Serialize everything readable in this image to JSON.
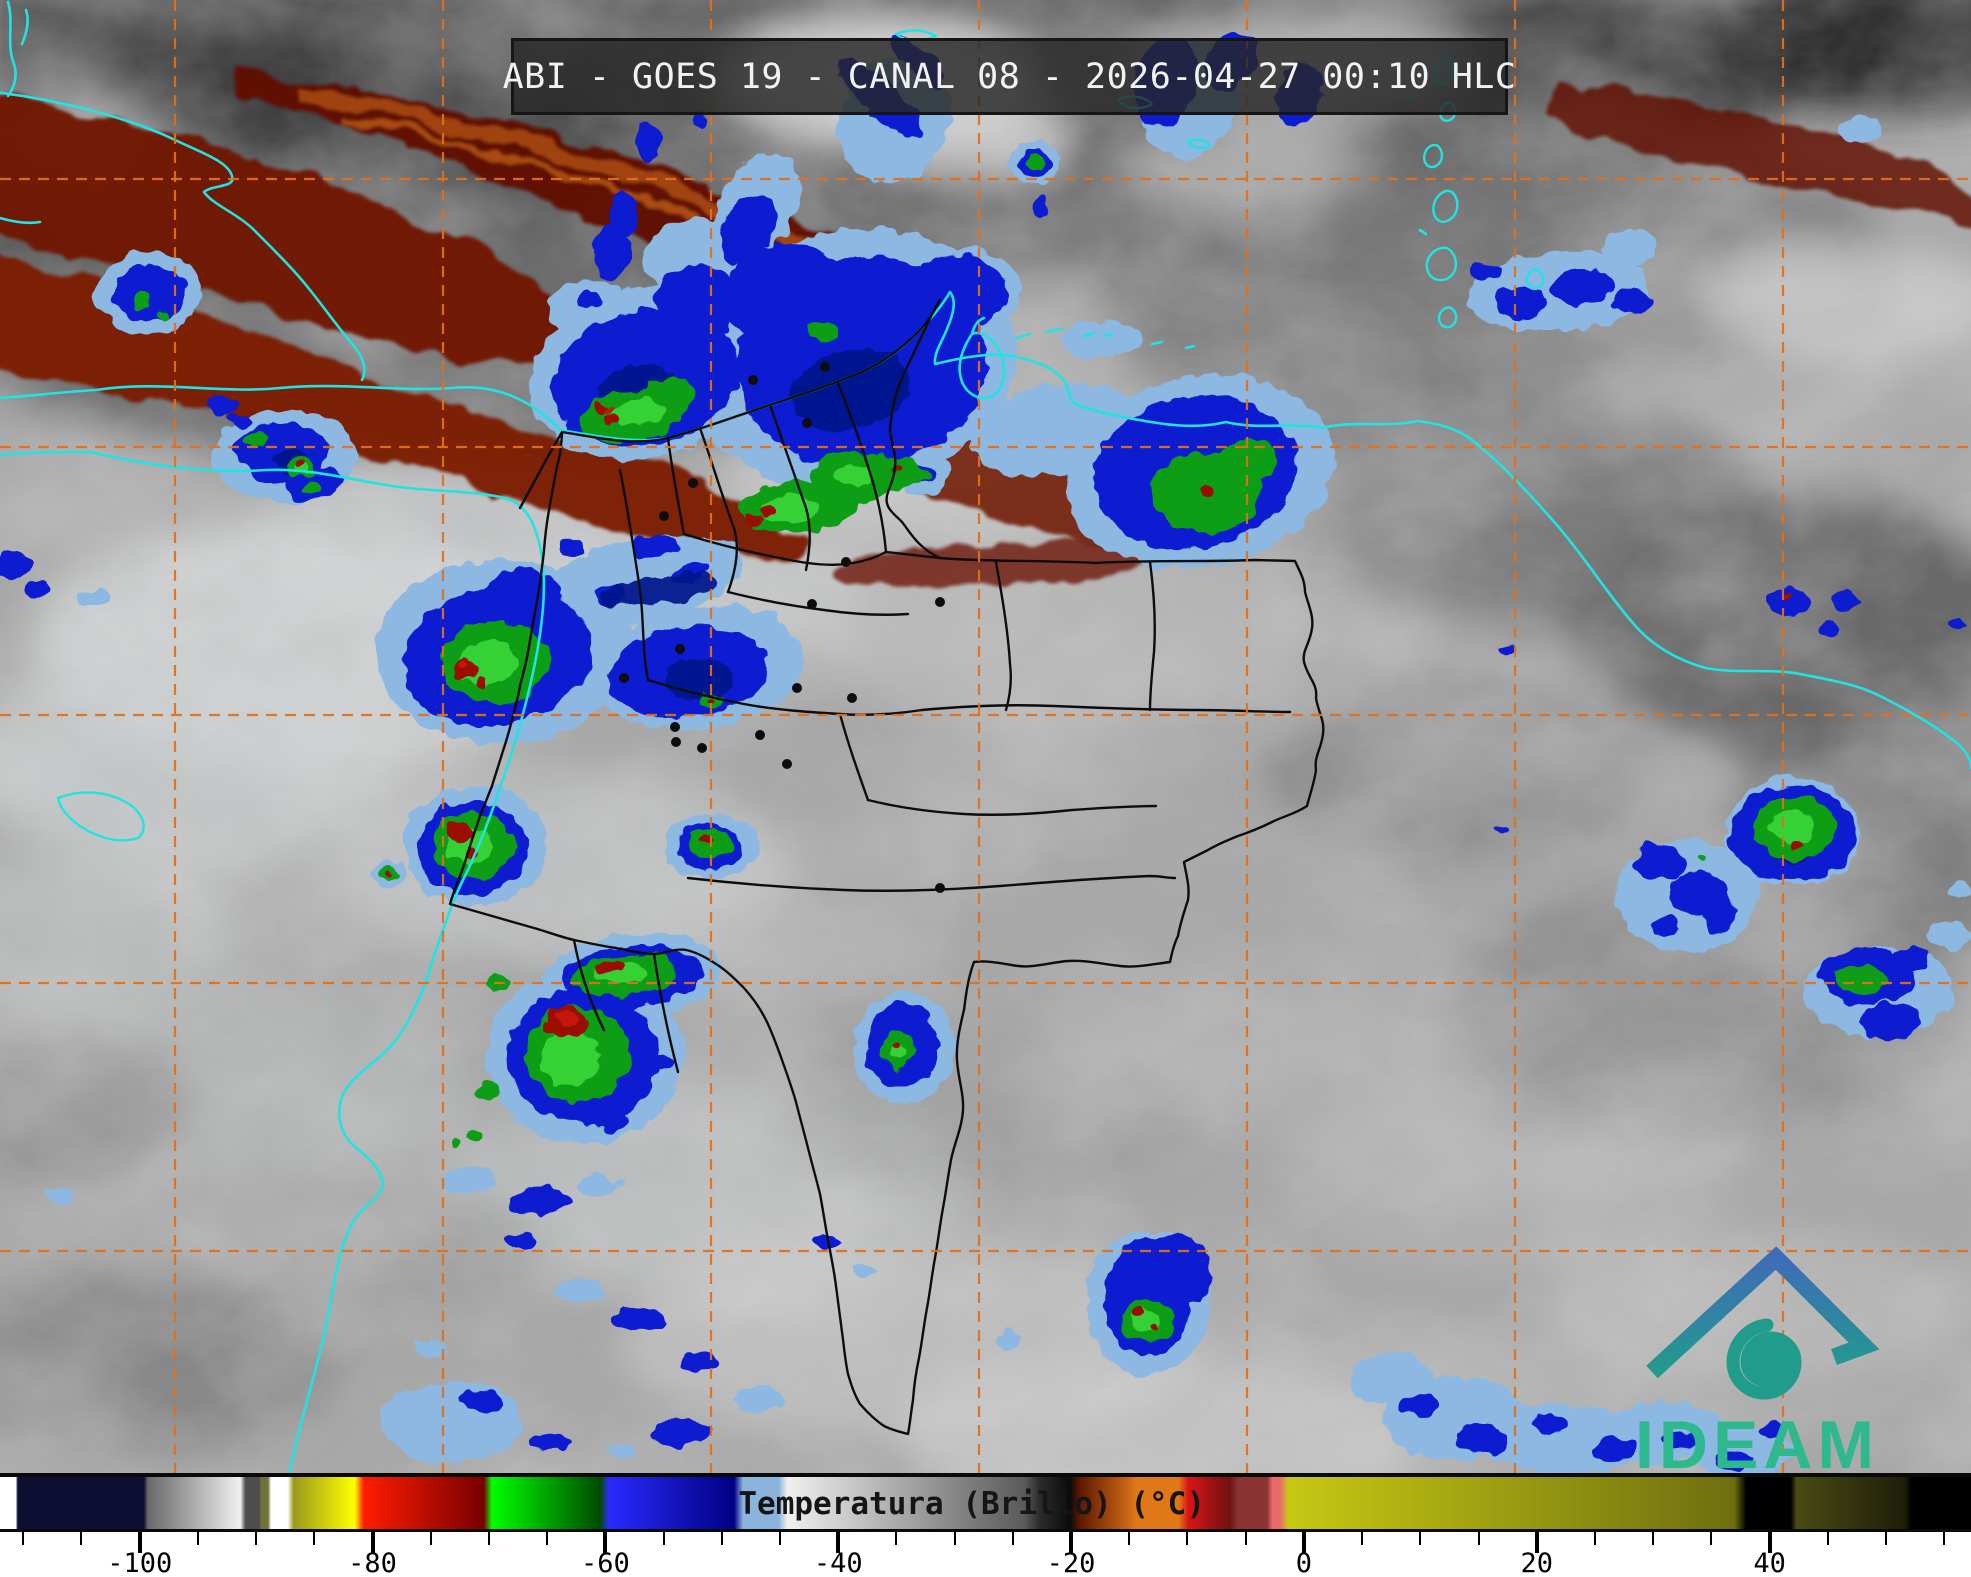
{
  "header": {
    "title": "ABI - GOES 19 - CANAL 08 - 2026-04-27 00:10 HLC"
  },
  "colorbar": {
    "title": "Temperatura (Brillo) (°C)",
    "unit": "°C",
    "axis_min": -112,
    "axis_max": 57.3,
    "major_ticks": [
      -100,
      -80,
      -60,
      -40,
      -20,
      0,
      20,
      40
    ],
    "minor_tick_min": -110,
    "minor_tick_max": 55,
    "minor_tick_step": 5,
    "gradient_stops": [
      [
        0,
        "#ffffff"
      ],
      [
        0.8,
        "#ffffff"
      ],
      [
        0.9,
        "#0e0e33"
      ],
      [
        7.3,
        "#0e0e33"
      ],
      [
        7.5,
        "#696969"
      ],
      [
        12.2,
        "#f0f0f0"
      ],
      [
        12.45,
        "#4e4e4e"
      ],
      [
        13.15,
        "#4e4e4e"
      ],
      [
        13.25,
        "#71713a"
      ],
      [
        13.6,
        "#71713a"
      ],
      [
        13.75,
        "#ffffff"
      ],
      [
        14.6,
        "#ffffff"
      ],
      [
        14.9,
        "#9a9a1c"
      ],
      [
        18.0,
        "#ffff00"
      ],
      [
        18.45,
        "#ff1c00"
      ],
      [
        24.55,
        "#780000"
      ],
      [
        24.95,
        "#00ff00"
      ],
      [
        30.45,
        "#004b00"
      ],
      [
        30.9,
        "#2a2aff"
      ],
      [
        37.25,
        "#000083"
      ],
      [
        37.7,
        "#8ab4dc"
      ],
      [
        39.5,
        "#8ab4dc"
      ],
      [
        39.95,
        "#f0f0f0"
      ],
      [
        52.0,
        "#5a5a5a"
      ],
      [
        52.7,
        "#2d2d2d"
      ],
      [
        54.3,
        "#0b0b0b"
      ],
      [
        54.75,
        "#5c1800"
      ],
      [
        57.2,
        "#c86414"
      ],
      [
        57.6,
        "#e07818"
      ],
      [
        59.8,
        "#e07818"
      ],
      [
        60.3,
        "#d81414"
      ],
      [
        62.4,
        "#701212"
      ],
      [
        62.8,
        "#8a3434"
      ],
      [
        64.3,
        "#8a3434"
      ],
      [
        64.55,
        "#ea6a6a"
      ],
      [
        64.95,
        "#ea6a6a"
      ],
      [
        65.35,
        "#c8c814"
      ],
      [
        88.0,
        "#6e6e10"
      ],
      [
        88.6,
        "#000000"
      ],
      [
        90.85,
        "#000000"
      ],
      [
        91.15,
        "#4a4a14"
      ],
      [
        96.6,
        "#1f1f0a"
      ],
      [
        97.0,
        "#000000"
      ],
      [
        100,
        "#000000"
      ]
    ]
  },
  "logo": {
    "label": "IDEAM"
  },
  "theme": {
    "grid": "#e0701c",
    "coast": "#21e3e3",
    "border": "#0d0d0d",
    "lb": "#8cb8e2",
    "bl": "#0b1fd0",
    "navy": "#001489",
    "gr": "#0c9e14",
    "gr2": "#38d438",
    "rd": "#9a0f05",
    "rd2": "#c41808",
    "maroon": "#6f1604",
    "maroon2": "#7c1a03",
    "orangestreak": "#b5500f",
    "titlebg": "rgba(38,38,38,0.82)",
    "titlefg": "#f2f2f2",
    "logogreen": "#2db88e",
    "logoteal": "#219c8c",
    "logoblue": "#3e6cb8"
  }
}
